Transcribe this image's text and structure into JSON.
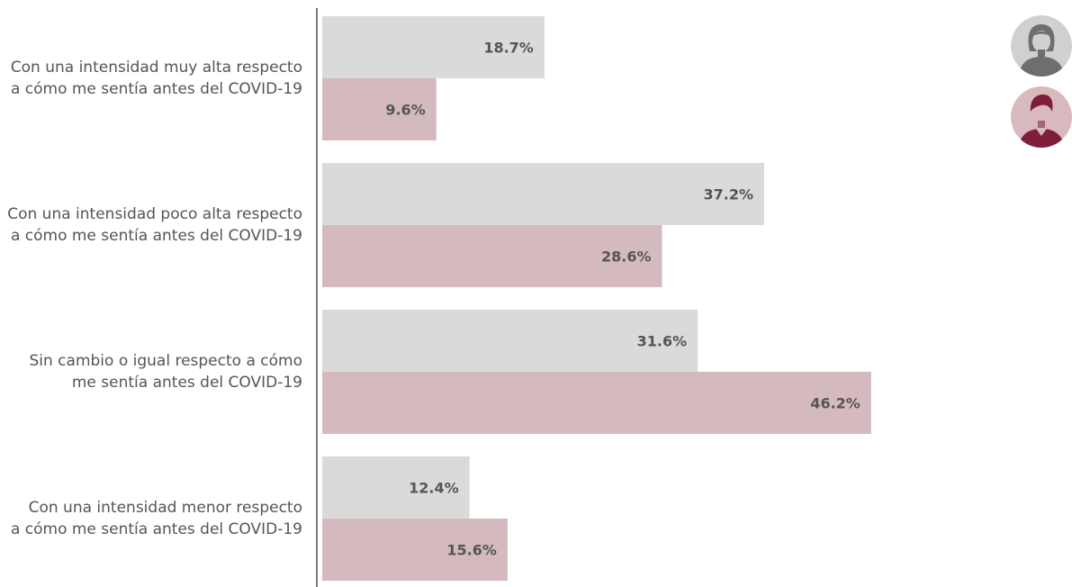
{
  "chart_data": {
    "type": "bar",
    "orientation": "horizontal",
    "categories": [
      "Con una intensidad muy alta respecto\na cómo me sentía antes del COVID-19",
      "Con una intensidad poco alta respecto\na cómo me sentía antes del COVID-19",
      "Sin cambio o igual respecto a cómo\nme sentía antes del COVID-19",
      "Con una intensidad menor respecto\na cómo me sentía antes del COVID-19"
    ],
    "series": [
      {
        "legend_icon": "woman-avatar-icon",
        "color": "#dadada",
        "values": [
          18.7,
          37.2,
          31.6,
          12.4
        ],
        "labels": [
          "18.7%",
          "37.2%",
          "31.6%",
          "12.4%"
        ]
      },
      {
        "legend_icon": "man-avatar-icon",
        "color": "#d4babe",
        "values": [
          9.6,
          28.6,
          46.2,
          15.6
        ],
        "labels": [
          "9.6%",
          "28.6%",
          "46.2%",
          "15.6%"
        ]
      }
    ],
    "xlim": [
      0,
      60
    ],
    "grid": false,
    "legend": "top-right"
  },
  "colors": {
    "value_label": "#555555",
    "axis": "#7a7a7a",
    "woman_avatar_bg": "#d0d0d0",
    "woman_avatar_fg": "#6e6e6e",
    "man_avatar_bg": "#d8b9bd",
    "man_avatar_fg": "#7d1f3b"
  }
}
